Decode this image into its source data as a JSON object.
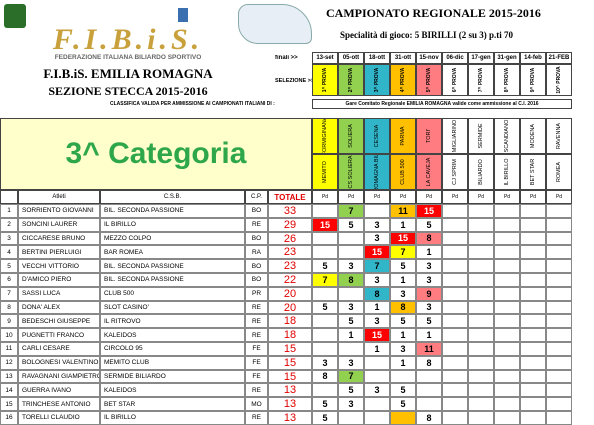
{
  "header": {
    "logo": "F.I.B.i.S.",
    "federation": "FEDERAZIONE ITALIANA BILIARDO SPORTIVO",
    "region": "F.I.B.iS. EMILIA ROMAGNA",
    "section": "SEZIONE STECCA 2015-2016",
    "championship": "CAMPIONATO REGIONALE 2015-2016",
    "specialty": "Specialità di gioco: 5 BIRILLI (2 su 3) p.ti 70",
    "finals_label": "finali >>",
    "selection_label": "SELEZIONE >>",
    "classification_note": "CLASSIFICA VALIDA PER AMMISSIONE AI CAMPIONATI ITALIANI DI :",
    "committee_note": "Gare Comitato Regionale EMILIA ROMAGNA valide come ammissione al C.I. 2016",
    "category": "3^ Categoria"
  },
  "rounds": [
    {
      "date": "13-set",
      "label": "1^ PROVA",
      "venue": "FORMIGINANA",
      "club": "MEMITO"
    },
    {
      "date": "05-ott",
      "label": "2^ PROVA",
      "venue": "SOLIERA",
      "club": "CS SOLIERA"
    },
    {
      "date": "18-ott",
      "label": "3^ PROVA",
      "venue": "CESENA",
      "club": "ROMAGNA BIL."
    },
    {
      "date": "31-ott",
      "label": "4^ PROVA",
      "venue": "PARMA",
      "club": "CLUB 500"
    },
    {
      "date": "15-nov",
      "label": "5^ PROVA",
      "venue": "TORI'",
      "club": "LA CAVEJA"
    },
    {
      "date": "06-dic",
      "label": "6^ PROVA",
      "venue": "MIGLIARINO",
      "club": "CJ SPRIM"
    },
    {
      "date": "17-gen",
      "label": "7^ PROVA",
      "venue": "SERMIDE",
      "club": "BILIARDO"
    },
    {
      "date": "31-gen",
      "label": "8^ PROVA",
      "venue": "SCANDIANO",
      "club": "IL BIRILLO"
    },
    {
      "date": "14-feb",
      "label": "9^ PROVA",
      "venue": "MODENA",
      "club": "BET STAR"
    },
    {
      "date": "21-FEB",
      "label": "10^ PROVA",
      "venue": "RAVENNA",
      "club": "ROMEA"
    }
  ],
  "table": {
    "columns": [
      "Atleti",
      "C.S.B.",
      "C.P.",
      "TOTALE"
    ],
    "round_column": "Pd",
    "rows": [
      {
        "rank": 1,
        "name": "SORRIENTO GIOVANNI",
        "club": "BIL. SECONDA PASSIONE",
        "province": "BO",
        "total": 33,
        "points": [
          null,
          7,
          null,
          11,
          15,
          null,
          null,
          null,
          null,
          null
        ]
      },
      {
        "rank": 2,
        "name": "SONCINI LAURER",
        "club": "IL BIRILLO",
        "province": "RE",
        "total": 29,
        "points": [
          15,
          5,
          3,
          1,
          5,
          null,
          null,
          null,
          null,
          null
        ]
      },
      {
        "rank": 3,
        "name": "CICCARESE BRUNO",
        "club": "MEZZO COLPO",
        "province": "BO",
        "total": 26,
        "points": [
          null,
          null,
          3,
          15,
          8,
          null,
          null,
          null,
          null,
          null
        ]
      },
      {
        "rank": 4,
        "name": "BERTINI PIERLUIGI",
        "club": "BAR ROMEA",
        "province": "RA",
        "total": 23,
        "points": [
          null,
          null,
          15,
          7,
          1,
          null,
          null,
          null,
          null,
          null
        ]
      },
      {
        "rank": 5,
        "name": "VECCHI VITTORIO",
        "club": "BIL. SECONDA PASSIONE",
        "province": "BO",
        "total": 23,
        "points": [
          5,
          3,
          7,
          5,
          3,
          null,
          null,
          null,
          null,
          null
        ]
      },
      {
        "rank": 6,
        "name": "D'AMICO PIERO",
        "club": "BIL. SECONDA PASSIONE",
        "province": "BO",
        "total": 22,
        "points": [
          7,
          8,
          3,
          1,
          3,
          null,
          null,
          null,
          null,
          null
        ]
      },
      {
        "rank": 7,
        "name": "SASSI LUCA",
        "club": "CLUB 500",
        "province": "PR",
        "total": 20,
        "points": [
          null,
          null,
          8,
          3,
          9,
          null,
          null,
          null,
          null,
          null
        ]
      },
      {
        "rank": 8,
        "name": "DONA' ALEX",
        "club": "SLOT CASINO'",
        "province": "RE",
        "total": 20,
        "points": [
          5,
          3,
          1,
          8,
          3,
          null,
          null,
          null,
          null,
          null
        ]
      },
      {
        "rank": 9,
        "name": "BEDESCHI GIUSEPPE",
        "club": "IL RITROVO",
        "province": "RE",
        "total": 18,
        "points": [
          null,
          5,
          3,
          5,
          5,
          null,
          null,
          null,
          null,
          null
        ]
      },
      {
        "rank": 10,
        "name": "PUGNETTI FRANCO",
        "club": "KALEIDOS",
        "province": "RE",
        "total": 18,
        "points": [
          null,
          1,
          15,
          1,
          1,
          null,
          null,
          null,
          null,
          null
        ]
      },
      {
        "rank": 11,
        "name": "CARLI CESARE",
        "club": "CIRCOLO 95",
        "province": "FE",
        "total": 15,
        "points": [
          null,
          null,
          1,
          3,
          11,
          null,
          null,
          null,
          null,
          null
        ]
      },
      {
        "rank": 12,
        "name": "BOLOGNESI VALENTINO",
        "club": "MEMITO CLUB",
        "province": "FE",
        "total": 15,
        "points": [
          3,
          3,
          null,
          1,
          8,
          null,
          null,
          null,
          null,
          null
        ]
      },
      {
        "rank": 13,
        "name": "RAVAGNANI GIAMPIETRO",
        "club": "SERMIDE BILIARDO",
        "province": "FE",
        "total": 15,
        "points": [
          8,
          7,
          null,
          null,
          null,
          null,
          null,
          null,
          null,
          null
        ]
      },
      {
        "rank": 14,
        "name": "GUERRA IVANO",
        "club": "KALEIDOS",
        "province": "RE",
        "total": 13,
        "points": [
          null,
          5,
          3,
          5,
          null,
          null,
          null,
          null,
          null,
          null
        ]
      },
      {
        "rank": 15,
        "name": "TRINCHESE ANTONIO",
        "club": "BET STAR",
        "province": "MO",
        "total": 13,
        "points": [
          5,
          3,
          null,
          5,
          null,
          null,
          null,
          null,
          null,
          null
        ]
      },
      {
        "rank": 16,
        "name": "TORELLI CLAUDIO",
        "club": "IL BIRILLO",
        "province": "RE",
        "total": 13,
        "points": [
          5,
          null,
          null,
          null,
          8,
          null,
          null,
          null,
          null,
          null
        ]
      }
    ]
  }
}
